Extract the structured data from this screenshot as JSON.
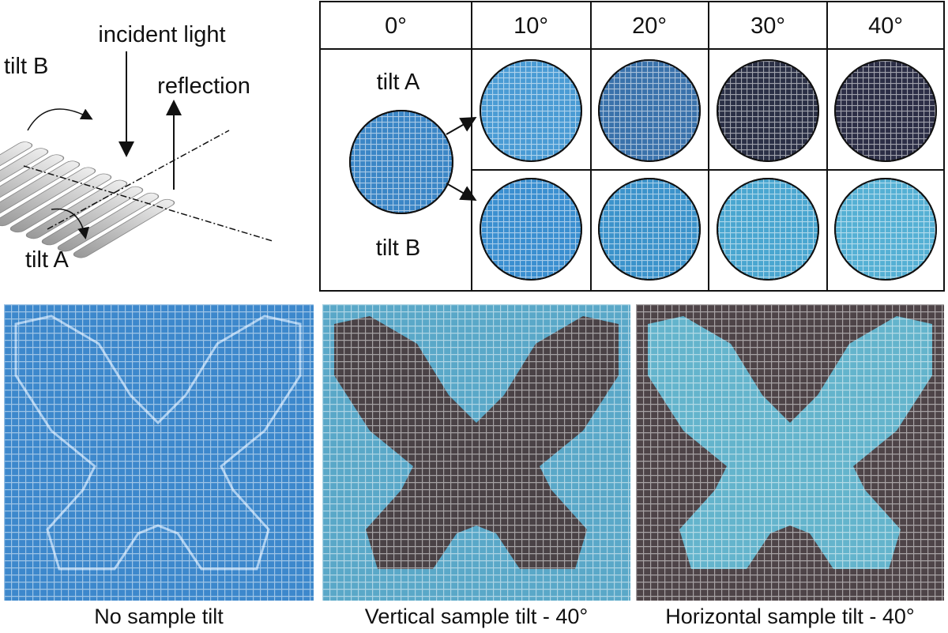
{
  "diagram": {
    "incident_light": "incident light",
    "reflection": "reflection",
    "tilt_b": "tilt B",
    "tilt_a": "tilt A"
  },
  "table": {
    "header": [
      "0°",
      "10°",
      "20°",
      "30°",
      "40°"
    ],
    "rows": [
      "tilt A",
      "tilt B"
    ]
  },
  "panels": [
    {
      "caption": "No sample tilt"
    },
    {
      "caption": "Vertical sample tilt - 40°"
    },
    {
      "caption": "Horizontal sample tilt - 40°"
    }
  ]
}
